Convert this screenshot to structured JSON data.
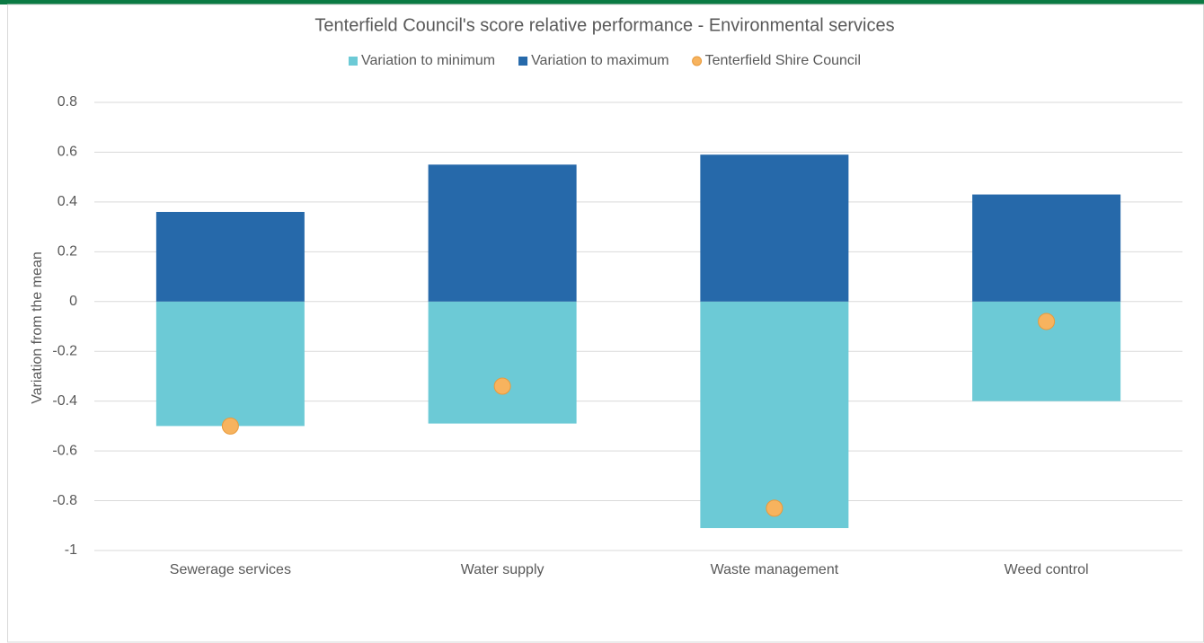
{
  "chart_data": {
    "type": "bar",
    "title": "Tenterfield Council's score relative performance - Environmental services",
    "y_label": "Variation from the mean",
    "categories": [
      "Sewerage services",
      "Water supply",
      "Waste management",
      "Weed control"
    ],
    "series": [
      {
        "name": "Variation to minimum",
        "color": "#6ccad6",
        "values": [
          -0.5,
          -0.49,
          -0.91,
          -0.4
        ]
      },
      {
        "name": "Variation to maximum",
        "color": "#2669aa",
        "values": [
          0.36,
          0.55,
          0.59,
          0.43
        ]
      },
      {
        "name": "Tenterfield Shire Council",
        "color": "#f7b35e",
        "type": "scatter",
        "values": [
          -0.5,
          -0.34,
          -0.83,
          -0.08
        ]
      }
    ],
    "ylim": [
      -1,
      0.8
    ],
    "yticks": [
      -1,
      -0.8,
      -0.6,
      -0.4,
      -0.2,
      0,
      0.2,
      0.4,
      0.6,
      0.8
    ],
    "grid": true,
    "legend": "top"
  }
}
